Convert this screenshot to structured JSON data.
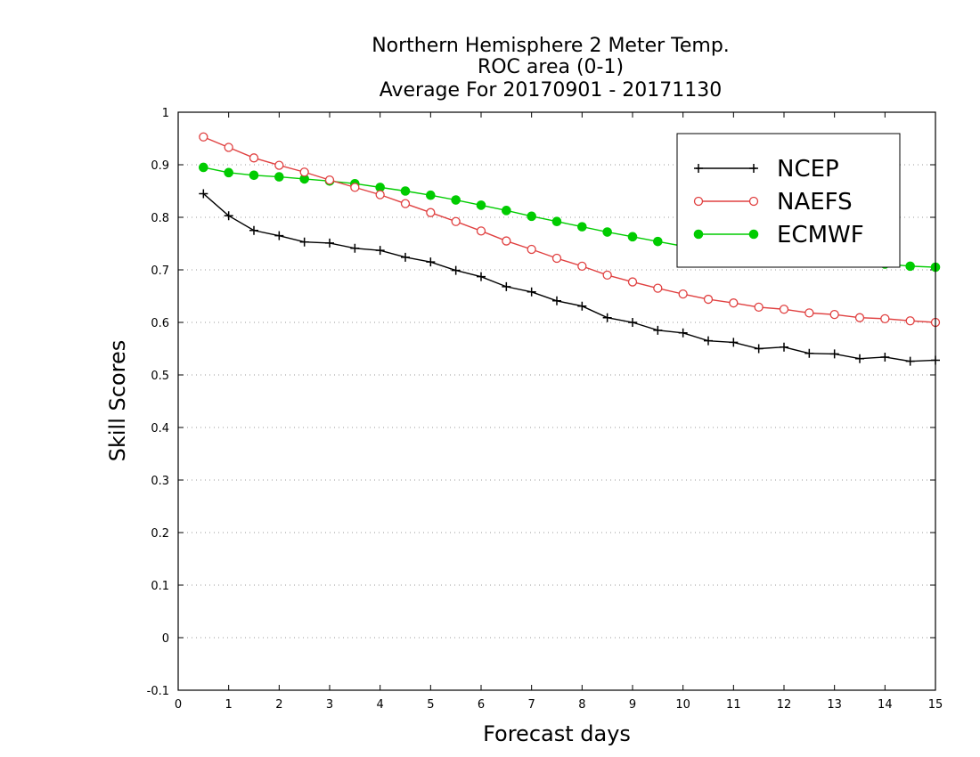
{
  "chart_data": {
    "type": "line",
    "title_lines": [
      "Northern Hemisphere 2 Meter Temp.",
      "ROC area (0-1)",
      "Average For 20170901 - 20171130"
    ],
    "xlabel": "Forecast days",
    "ylabel": "Skill Scores",
    "xlim": [
      0,
      15
    ],
    "ylim": [
      -0.1,
      1
    ],
    "x_ticks": [
      0,
      1,
      2,
      3,
      4,
      5,
      6,
      7,
      8,
      9,
      10,
      11,
      12,
      13,
      14,
      15
    ],
    "x_tick_labels": [
      "0",
      "1",
      "2",
      "3",
      "4",
      "5",
      "6",
      "7",
      "8",
      "9",
      "10",
      "11",
      "12",
      "13",
      "14",
      "15"
    ],
    "y_ticks": [
      -0.1,
      0,
      0.1,
      0.2,
      0.3,
      0.4,
      0.5,
      0.6,
      0.7,
      0.8,
      0.9,
      1
    ],
    "y_tick_labels": [
      "-0.1",
      "0",
      "0.1",
      "0.2",
      "0.3",
      "0.4",
      "0.5",
      "0.6",
      "0.7",
      "0.8",
      "0.9",
      "1"
    ],
    "grid": "horizontal-dotted",
    "legend_position": "top-right",
    "x": [
      0.5,
      1,
      1.5,
      2,
      2.5,
      3,
      3.5,
      4,
      4.5,
      5,
      5.5,
      6,
      6.5,
      7,
      7.5,
      8,
      8.5,
      9,
      9.5,
      10,
      10.5,
      11,
      11.5,
      12,
      12.5,
      13,
      13.5,
      14,
      14.5,
      15
    ],
    "series": [
      {
        "name": "NCEP",
        "color": "#000000",
        "marker": "plus",
        "values": [
          0.845,
          0.803,
          0.775,
          0.765,
          0.753,
          0.751,
          0.741,
          0.737,
          0.724,
          0.715,
          0.699,
          0.687,
          0.668,
          0.658,
          0.641,
          0.631,
          0.609,
          0.6,
          0.585,
          0.58,
          0.565,
          0.562,
          0.55,
          0.553,
          0.541,
          0.54,
          0.531,
          0.534,
          0.526,
          0.528
        ]
      },
      {
        "name": "NAEFS",
        "color": "#e04040",
        "marker": "open-circle",
        "values": [
          0.953,
          0.933,
          0.913,
          0.899,
          0.886,
          0.871,
          0.857,
          0.843,
          0.826,
          0.809,
          0.792,
          0.774,
          0.755,
          0.739,
          0.722,
          0.707,
          0.69,
          0.677,
          0.665,
          0.654,
          0.644,
          0.637,
          0.629,
          0.625,
          0.618,
          0.615,
          0.609,
          0.607,
          0.603,
          0.6
        ]
      },
      {
        "name": "ECMWF",
        "color": "#00cc00",
        "marker": "filled-circle",
        "values": [
          0.895,
          0.885,
          0.88,
          0.877,
          0.873,
          0.869,
          0.864,
          0.857,
          0.85,
          0.842,
          0.833,
          0.823,
          0.813,
          0.802,
          0.792,
          0.782,
          0.772,
          0.763,
          0.754,
          0.745,
          0.736,
          0.728,
          0.72,
          0.743,
          0.735,
          0.727,
          0.719,
          0.711,
          0.707,
          0.705
        ]
      }
    ]
  }
}
